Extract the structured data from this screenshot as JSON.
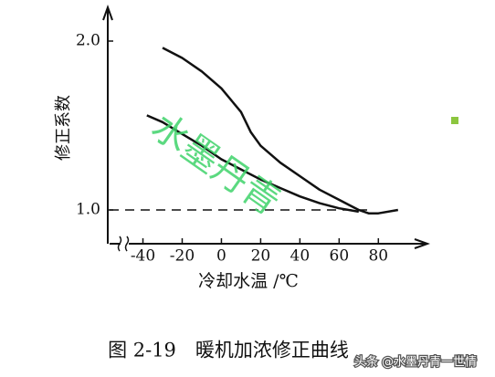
{
  "chart_data": {
    "type": "line",
    "caption": "图 2-19　暖机加浓修正曲线",
    "ylabel": "修正系数",
    "xlabel": "冷却水温 /℃",
    "watermark": "水墨丹青",
    "credit": "头条 @水墨丹青一世情",
    "xlim": [
      -57,
      105
    ],
    "ylim": [
      0.8,
      2.2
    ],
    "xticks": [
      -40,
      -20,
      0,
      20,
      40,
      60,
      80
    ],
    "yticks": [
      {
        "value": 1.0,
        "label": "1.0"
      },
      {
        "value": 2.0,
        "label": "2.0"
      }
    ],
    "reference_line": {
      "value": 1.0,
      "xlim": [
        -57,
        75
      ],
      "style": "dashed"
    },
    "series": [
      {
        "color": "#111111",
        "x": [
          -30,
          -20,
          -10,
          0,
          10,
          15,
          20,
          30,
          40,
          50,
          60,
          70,
          75,
          80,
          90
        ],
        "values": [
          1.96,
          1.9,
          1.82,
          1.72,
          1.58,
          1.46,
          1.38,
          1.28,
          1.2,
          1.12,
          1.06,
          1.0,
          0.98,
          0.98,
          1.0
        ]
      },
      {
        "color": "#111111",
        "x": [
          -38,
          -30,
          -20,
          -10,
          0,
          10,
          20,
          30,
          40,
          50,
          60,
          70
        ],
        "values": [
          1.56,
          1.52,
          1.45,
          1.38,
          1.3,
          1.24,
          1.18,
          1.13,
          1.08,
          1.04,
          1.01,
          0.99
        ]
      }
    ]
  }
}
